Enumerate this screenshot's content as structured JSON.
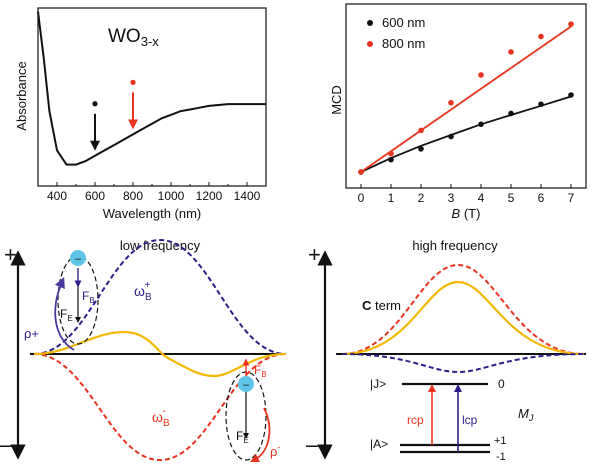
{
  "colors": {
    "black": "#111111",
    "red": "#e8341f",
    "blue": "#2c1f8a",
    "gold": "#f5b800",
    "electron": "#5ec4e8"
  },
  "chart_data": [
    {
      "type": "line",
      "panel": "absorbance",
      "title": "WO3-x",
      "title_main": "WO",
      "title_sub": "3-x",
      "xlabel": "Wavelength (nm)",
      "ylabel": "Absorbance",
      "xlim": [
        300,
        1500
      ],
      "ylim": [
        0,
        1
      ],
      "xticks": [
        400,
        600,
        800,
        1000,
        1200,
        1400
      ],
      "x": [
        300,
        330,
        360,
        400,
        450,
        500,
        550,
        600,
        650,
        700,
        750,
        800,
        850,
        900,
        950,
        1000,
        1050,
        1100,
        1150,
        1200,
        1250,
        1300,
        1350,
        1400,
        1450,
        1500
      ],
      "y": [
        0.98,
        0.72,
        0.42,
        0.2,
        0.12,
        0.12,
        0.14,
        0.17,
        0.2,
        0.23,
        0.26,
        0.29,
        0.32,
        0.35,
        0.38,
        0.4,
        0.42,
        0.43,
        0.44,
        0.45,
        0.455,
        0.46,
        0.46,
        0.46,
        0.46,
        0.46
      ],
      "markers": [
        {
          "x": 600,
          "color": "#111111"
        },
        {
          "x": 800,
          "color": "#e8341f"
        }
      ]
    },
    {
      "type": "scatter",
      "panel": "mcd",
      "xlabel_italic": "B",
      "xlabel_rest": " (T)",
      "ylabel": "MCD",
      "xlim": [
        -0.5,
        7.5
      ],
      "ylim": [
        0,
        1
      ],
      "xticks": [
        0,
        1,
        2,
        3,
        4,
        5,
        6,
        7
      ],
      "legend_position": "top-left",
      "series": [
        {
          "name": "600 nm",
          "color": "#111111",
          "x": [
            0,
            1,
            2,
            3,
            4,
            5,
            6,
            7
          ],
          "y": [
            0.0,
            0.08,
            0.15,
            0.23,
            0.31,
            0.38,
            0.44,
            0.5
          ],
          "fit": [
            0.0,
            0.09,
            0.17,
            0.24,
            0.31,
            0.37,
            0.43,
            0.49
          ]
        },
        {
          "name": "800 nm",
          "color": "#e8341f",
          "x": [
            0,
            1,
            2,
            3,
            4,
            5,
            6,
            7
          ],
          "y": [
            0.0,
            0.12,
            0.27,
            0.45,
            0.63,
            0.78,
            0.88,
            0.96
          ],
          "fit": [
            0.0,
            0.135,
            0.27,
            0.405,
            0.54,
            0.675,
            0.81,
            0.945
          ]
        }
      ]
    }
  ],
  "diagram_low": {
    "title": "low frequency",
    "plus": "+",
    "minus": "–",
    "electron_minus": "–",
    "fb": "F",
    "fb_sub": "B",
    "fe": "F",
    "fe_sub": "E",
    "rho_plus": "ρ+",
    "rho_minus_main": "ρ",
    "rho_minus_sup": "-",
    "omega_plus_main": "ω",
    "omega_plus_sub": "B",
    "omega_plus_sup": "+",
    "omega_minus_main": "ω",
    "omega_minus_sub": "B",
    "omega_minus_sup": "-"
  },
  "diagram_high": {
    "title": "high frequency",
    "plus": "+",
    "minus": "–",
    "c_term_bold": "C",
    "c_term_rest": " term",
    "level_j": "|J>",
    "level_a": "|A>",
    "mj_main": "M",
    "mj_sub": "J",
    "mj_zero": "0",
    "mj_plus": "+1",
    "mj_minus": "-1",
    "rcp": "rcp",
    "lcp": "lcp"
  }
}
